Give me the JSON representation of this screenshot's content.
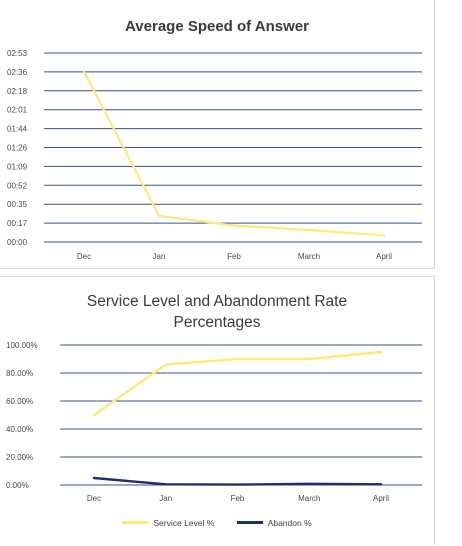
{
  "chart_data": [
    {
      "type": "line",
      "title": "Average Speed of Answer",
      "categories": [
        "Dec",
        "Jan",
        "Feb",
        "March",
        "April"
      ],
      "y_tick_labels": [
        "00:00",
        "00:17",
        "00:35",
        "00:52",
        "01:09",
        "01:26",
        "01:44",
        "02:01",
        "02:18",
        "02:36",
        "02:53"
      ],
      "ylim": [
        0,
        173
      ],
      "grid": true,
      "series": [
        {
          "values": [
            156,
            24,
            15,
            11,
            6
          ],
          "color": "#ffe97a"
        }
      ]
    },
    {
      "type": "line",
      "title": "Service Level and Abandonment Rate Percentages",
      "categories": [
        "Dec",
        "Jan",
        "Feb",
        "March",
        "April"
      ],
      "y_tick_labels": [
        "0.00%",
        "20.00%",
        "40.00%",
        "60.00%",
        "80.00%",
        "100.00%"
      ],
      "ylim": [
        0,
        100
      ],
      "grid": true,
      "legend": "bottom",
      "series": [
        {
          "name": "Service Level %",
          "values": [
            50,
            86,
            90,
            90,
            95
          ],
          "color": "#ffe97a"
        },
        {
          "name": "Abandon %",
          "values": [
            5,
            0.5,
            0.3,
            0.8,
            0.5
          ],
          "color": "#1f2f6b"
        }
      ]
    }
  ]
}
